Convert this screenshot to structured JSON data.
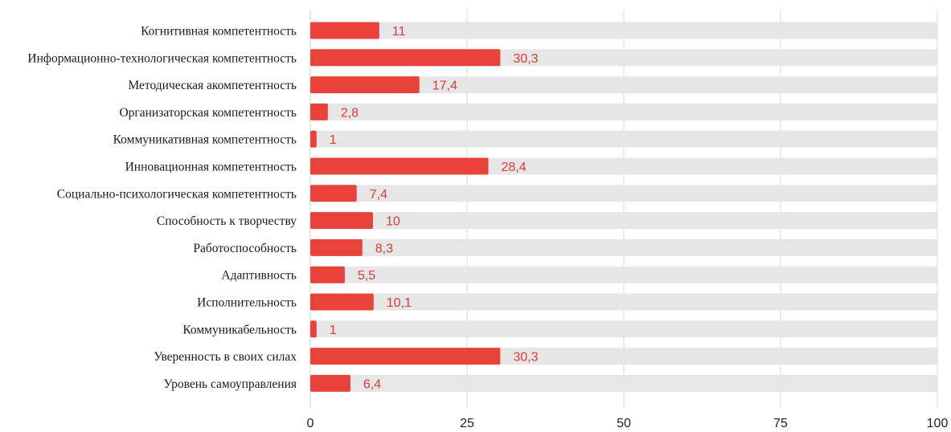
{
  "chart_data": {
    "type": "bar",
    "orientation": "horizontal",
    "categories": [
      "Когнитивная компетентность",
      "Информационно-технологическая компетентность",
      "Методическая акомпетентность",
      "Организаторская компетентность",
      "Коммуникативная компетентность",
      "Инновационная компетентность",
      "Социально-психологическая компетентность",
      "Способность к творчеству",
      "Работоспособность",
      "Адаптивность",
      "Исполнительность",
      "Коммуникабельность",
      "Уверенность в своих силах",
      "Уровень самоуправления"
    ],
    "values": [
      11,
      30.3,
      17.4,
      2.8,
      1,
      28.4,
      7.4,
      10,
      8.3,
      5.5,
      10.1,
      1,
      30.3,
      6.4
    ],
    "value_labels": [
      "11",
      "30,3",
      "17,4",
      "2,8",
      "1",
      "28,4",
      "7,4",
      "10",
      "8,3",
      "5,5",
      "10,1",
      "1",
      "30,3",
      "6,4"
    ],
    "xlim": [
      0,
      100
    ],
    "xticks": [
      0,
      25,
      50,
      75,
      100
    ],
    "xtick_labels": [
      "0",
      "25",
      "50",
      "75",
      "100"
    ],
    "grid": true,
    "background_track": true,
    "colors": {
      "bar": "#e8423a",
      "track": "#e6e6e6",
      "value_label": "#e03b33",
      "grid": "#d9d9d9"
    }
  }
}
